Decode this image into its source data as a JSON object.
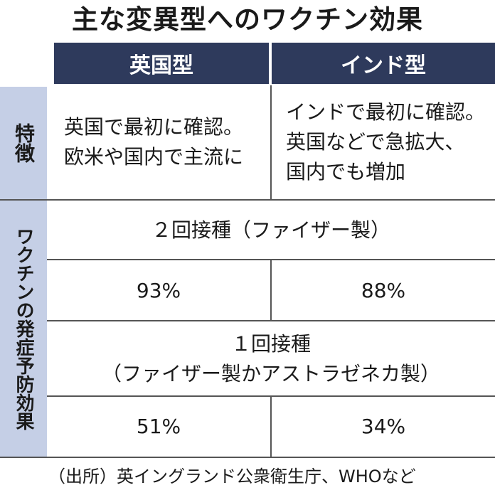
{
  "title": "主な変異型へのワクチン効果",
  "headers": {
    "uk": "英国型",
    "india": "インド型"
  },
  "side": {
    "features": "特徴",
    "efficacy": "ワクチンの発症予防効果"
  },
  "features": {
    "uk": [
      "英国で最初に確認。",
      "欧米や国内で主流に"
    ],
    "india": [
      "インドで最初に確認。",
      "英国などで急拡大、",
      "国内でも増加"
    ]
  },
  "rows": {
    "dose2_label": "２回接種（ファイザー製）",
    "dose2_uk": "93%",
    "dose2_india": "88%",
    "dose1_label_line1": "１回接種",
    "dose1_label_line2": "（ファイザー製かアストラゼネカ製）",
    "dose1_uk": "51%",
    "dose1_india": "34%"
  },
  "source": "（出所）英イングランド公衆衛生庁、WHOなど"
}
